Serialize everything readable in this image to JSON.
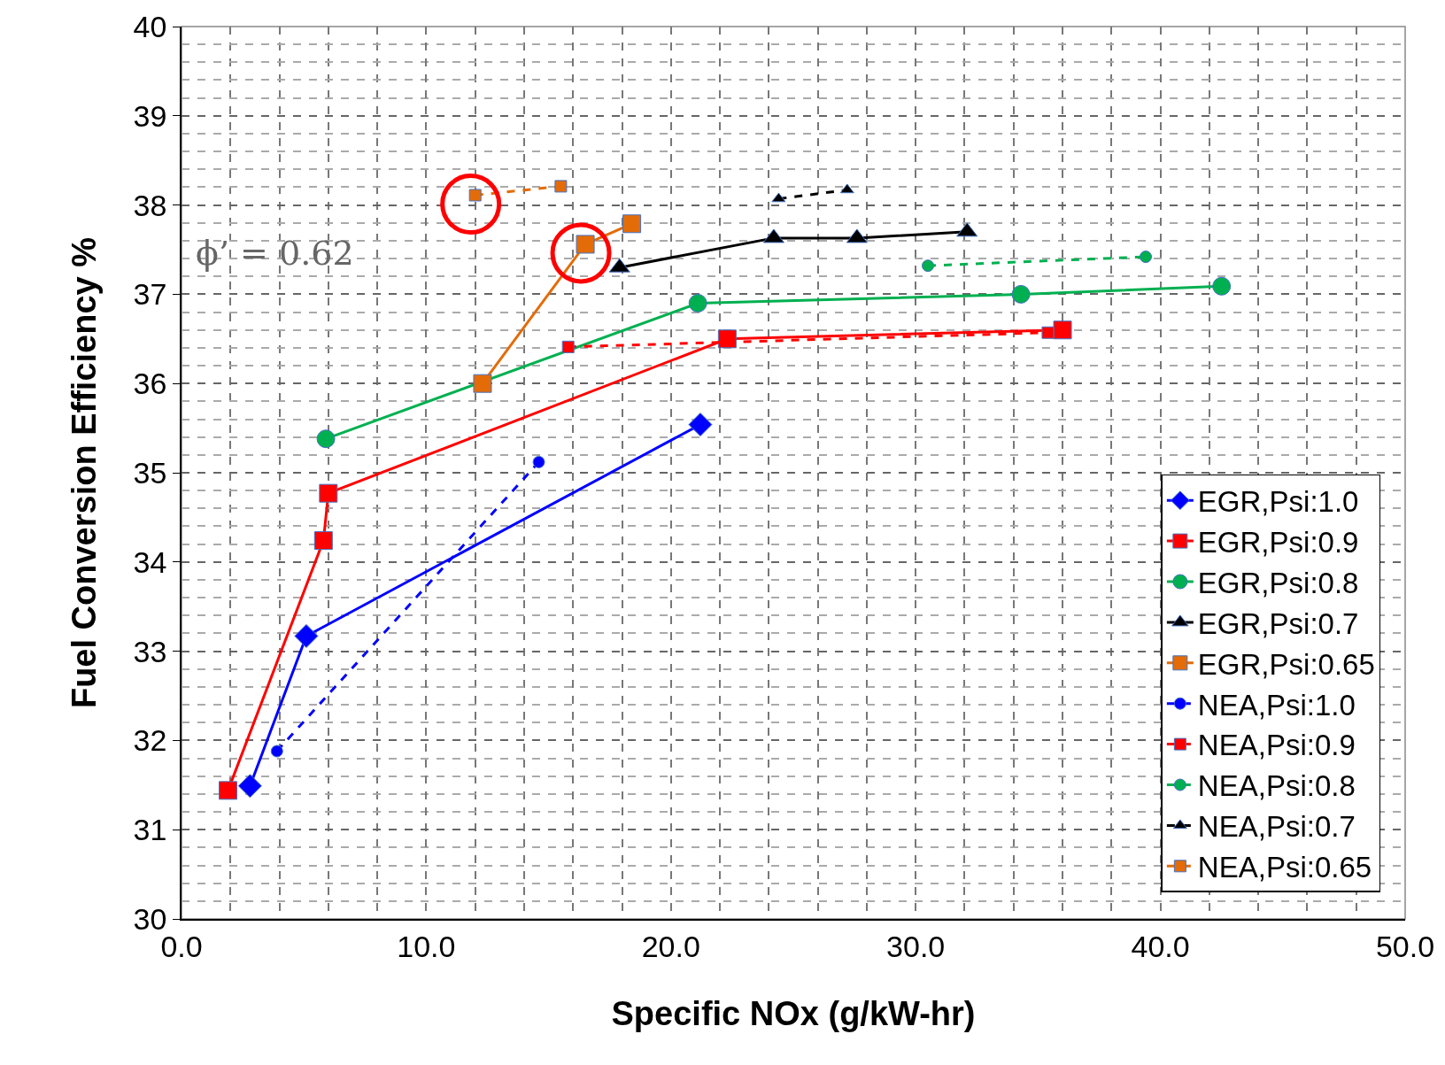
{
  "chart_data": {
    "type": "line",
    "xlabel": "Specific NOx (g/kW-hr)",
    "ylabel": "Fuel Conversion Efficiency %",
    "xlim": [
      0,
      50
    ],
    "xticks": [
      {
        "value": 0,
        "label": "0.0"
      },
      {
        "value": 10,
        "label": "10.0"
      },
      {
        "value": 20,
        "label": "20.0"
      },
      {
        "value": 30,
        "label": "30.0"
      },
      {
        "value": 40,
        "label": "40.0"
      },
      {
        "value": 50,
        "label": "50.0"
      }
    ],
    "ylim": [
      30,
      40
    ],
    "yticks": [
      30,
      31,
      32,
      33,
      34,
      35,
      36,
      37,
      38,
      39,
      40
    ],
    "grid": true,
    "legend": "bottom right",
    "annotations": [
      "ϕ’ = 0.62"
    ],
    "series": [
      {
        "name": "EGR,Psi:1.0",
        "color": "#0000ff",
        "marker": "diamond",
        "line_style": "solid",
        "x": [
          2.8,
          5.1,
          21.2
        ],
        "values": [
          31.49,
          33.17,
          35.54
        ]
      },
      {
        "name": "EGR,Psi:0.9",
        "color": "#ff0000",
        "marker": "square",
        "line_style": "solid",
        "x": [
          1.9,
          5.8,
          6.0,
          22.3,
          36.0
        ],
        "values": [
          31.44,
          34.24,
          34.77,
          36.5,
          36.6
        ]
      },
      {
        "name": "EGR,Psi:0.8",
        "color": "#00b050",
        "marker": "circle",
        "line_style": "solid",
        "x": [
          5.9,
          21.1,
          34.3,
          42.5
        ],
        "values": [
          35.38,
          36.9,
          37.0,
          37.09
        ]
      },
      {
        "name": "EGR,Psi:0.7",
        "color": "#000000",
        "marker": "triangle",
        "line_style": "solid",
        "x": [
          17.9,
          24.2,
          27.6,
          32.1
        ],
        "values": [
          37.3,
          37.63,
          37.63,
          37.7
        ]
      },
      {
        "name": "EGR,Psi:0.65",
        "color": "#e36c09",
        "marker": "square",
        "line_style": "solid",
        "x": [
          12.3,
          16.5,
          18.4
        ],
        "values": [
          36.0,
          37.56,
          37.79
        ]
      },
      {
        "name": "NEA,Psi:1.0",
        "color": "#0000ff",
        "marker": "circle",
        "line_style": "dashed",
        "x": [
          3.9,
          14.6
        ],
        "values": [
          31.88,
          35.12
        ]
      },
      {
        "name": "NEA,Psi:0.9",
        "color": "#ff0000",
        "marker": "square",
        "line_style": "dashed",
        "x": [
          15.8,
          35.4
        ],
        "values": [
          36.41,
          36.57
        ]
      },
      {
        "name": "NEA,Psi:0.8",
        "color": "#00b050",
        "marker": "circle",
        "line_style": "dashed",
        "x": [
          30.5,
          39.4
        ],
        "values": [
          37.32,
          37.42
        ]
      },
      {
        "name": "NEA,Psi:0.7",
        "color": "#000000",
        "marker": "triangle",
        "line_style": "dashed",
        "x": [
          24.4,
          27.2
        ],
        "values": [
          38.07,
          38.17
        ]
      },
      {
        "name": "NEA,Psi:0.65",
        "color": "#e36c09",
        "marker": "square",
        "line_style": "dashed",
        "x": [
          12.0,
          15.5
        ],
        "values": [
          38.11,
          38.21
        ]
      }
    ]
  }
}
